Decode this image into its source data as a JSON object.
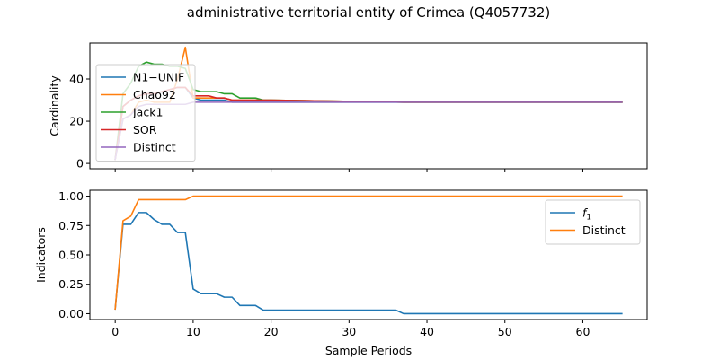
{
  "title": "administrative territorial entity of Crimea (Q4057732)",
  "chart_data": [
    {
      "type": "line",
      "ylabel": "Cardinality",
      "xlabel": "",
      "xlim": [
        -3.25,
        68.25
      ],
      "ylim": [
        -2.5,
        57
      ],
      "xticks": [
        0,
        10,
        20,
        30,
        40,
        50,
        60
      ],
      "yticks": [
        0,
        20,
        40
      ],
      "show_xtick_labels": false,
      "legend": "upper-left",
      "series": [
        {
          "name": "N1−UNIF",
          "color": "#1f77b4",
          "x": [
            0,
            1,
            2,
            3,
            4,
            5,
            6,
            7,
            8,
            9,
            10,
            11,
            12,
            13,
            14,
            15,
            16,
            17,
            18,
            19,
            20,
            37,
            65
          ],
          "y": [
            2,
            27,
            30,
            32,
            33,
            33,
            34,
            35,
            36,
            36,
            31,
            30,
            30,
            30,
            30,
            29,
            29,
            29,
            29,
            29,
            29,
            29,
            29
          ]
        },
        {
          "name": "Chao92",
          "color": "#ff7f0e",
          "x": [
            0,
            1,
            2,
            3,
            4,
            5,
            6,
            7,
            8,
            9,
            10,
            11,
            12,
            13,
            14,
            15,
            16,
            17,
            18,
            19,
            20,
            37,
            65
          ],
          "y": [
            2,
            21,
            23,
            29,
            30,
            29,
            29,
            29,
            40,
            55,
            31,
            31,
            31,
            31,
            31,
            30,
            30,
            30,
            30,
            30,
            30,
            29,
            29
          ]
        },
        {
          "name": "Jack1",
          "color": "#2ca02c",
          "x": [
            0,
            1,
            2,
            3,
            4,
            5,
            6,
            7,
            8,
            9,
            10,
            11,
            12,
            13,
            14,
            15,
            16,
            17,
            18,
            19,
            20,
            37,
            65
          ],
          "y": [
            2,
            33,
            38,
            46,
            48,
            47,
            47,
            46,
            46,
            45,
            35,
            34,
            34,
            34,
            33,
            33,
            31,
            31,
            31,
            30,
            30,
            29,
            29
          ]
        },
        {
          "name": "SOR",
          "color": "#d62728",
          "x": [
            0,
            1,
            2,
            3,
            4,
            5,
            6,
            7,
            8,
            9,
            10,
            11,
            12,
            13,
            14,
            15,
            16,
            17,
            18,
            19,
            20,
            37,
            65
          ],
          "y": [
            2,
            27,
            30,
            32,
            33,
            33,
            34,
            35,
            36,
            36,
            32,
            32,
            32,
            31,
            31,
            30,
            30,
            30,
            30,
            30,
            30,
            29,
            29
          ]
        },
        {
          "name": "Distinct",
          "color": "#9467bd",
          "x": [
            0,
            1,
            2,
            3,
            4,
            5,
            6,
            7,
            8,
            9,
            10,
            11,
            12,
            13,
            14,
            15,
            16,
            17,
            18,
            19,
            20,
            37,
            65
          ],
          "y": [
            2,
            21,
            23,
            27,
            28,
            28,
            28,
            28,
            28,
            28,
            29,
            29,
            29,
            29,
            29,
            29,
            29,
            29,
            29,
            29,
            29,
            29,
            29
          ]
        }
      ]
    },
    {
      "type": "line",
      "ylabel": "Indicators",
      "xlabel": "Sample Periods",
      "xlim": [
        -3.25,
        68.25
      ],
      "ylim": [
        -0.05,
        1.05
      ],
      "xticks": [
        0,
        10,
        20,
        30,
        40,
        50,
        60
      ],
      "yticks": [
        0.0,
        0.25,
        0.5,
        0.75,
        1.0
      ],
      "ytick_labels": [
        "0.00",
        "0.25",
        "0.50",
        "0.75",
        "1.00"
      ],
      "show_xtick_labels": true,
      "legend": "upper-right",
      "series": [
        {
          "name": "f1",
          "color": "#1f77b4",
          "x": [
            0,
            1,
            2,
            3,
            4,
            5,
            6,
            7,
            8,
            9,
            10,
            11,
            12,
            13,
            14,
            15,
            16,
            17,
            18,
            19,
            20,
            21,
            36,
            37,
            65
          ],
          "y": [
            0.04,
            0.76,
            0.76,
            0.86,
            0.86,
            0.8,
            0.76,
            0.76,
            0.69,
            0.69,
            0.21,
            0.17,
            0.17,
            0.17,
            0.14,
            0.14,
            0.07,
            0.07,
            0.07,
            0.03,
            0.03,
            0.03,
            0.03,
            0.0,
            0.0
          ]
        },
        {
          "name": "Distinct",
          "color": "#ff7f0e",
          "x": [
            0,
            1,
            2,
            3,
            4,
            5,
            6,
            7,
            8,
            9,
            10,
            11,
            65
          ],
          "y": [
            0.04,
            0.79,
            0.83,
            0.97,
            0.97,
            0.97,
            0.97,
            0.97,
            0.97,
            0.97,
            1.0,
            1.0,
            1.0
          ]
        }
      ]
    }
  ]
}
